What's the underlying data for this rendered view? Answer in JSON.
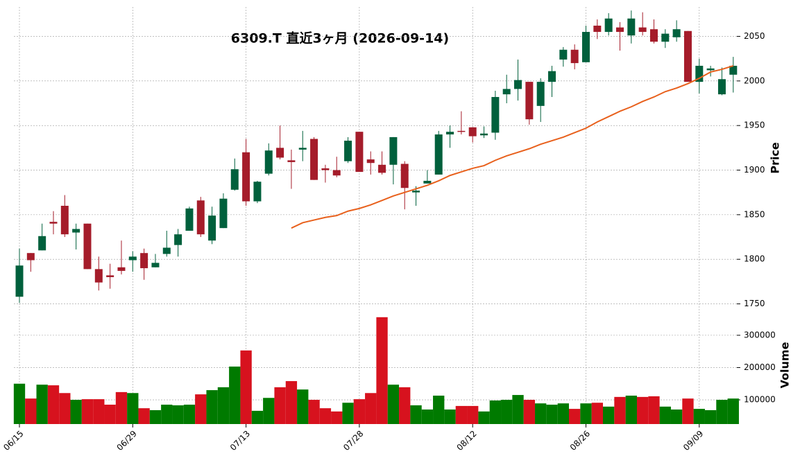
{
  "chart_data": {
    "type": "candlestick",
    "title": "6309.T  直近3ヶ月  (2026-09-14)",
    "categories": [
      "06/15",
      null,
      null,
      null,
      null,
      null,
      null,
      null,
      null,
      null,
      "06/29",
      null,
      null,
      null,
      null,
      null,
      null,
      null,
      null,
      null,
      "07/13",
      null,
      null,
      null,
      null,
      null,
      null,
      null,
      null,
      null,
      "07/28",
      null,
      null,
      null,
      null,
      null,
      null,
      null,
      null,
      null,
      "08/12",
      null,
      null,
      null,
      null,
      null,
      null,
      null,
      null,
      null,
      "08/26",
      null,
      null,
      null,
      null,
      null,
      null,
      null,
      null,
      null,
      "09/09",
      null,
      null,
      null
    ],
    "open": [
      1758,
      1807,
      1810,
      1842,
      1860,
      1830,
      1840,
      1789,
      1782,
      1791,
      1799,
      1807,
      1791,
      1806,
      1816,
      1832,
      1866,
      1821,
      1835,
      1878,
      1920,
      1865,
      1896,
      1925,
      1911,
      1923,
      1935,
      1902,
      1900,
      1910,
      1943,
      1912,
      1906,
      1906,
      1907,
      1875,
      1885,
      1895,
      1940,
      1944,
      1948,
      1939,
      1942,
      1985,
      1991,
      1999,
      1972,
      1999,
      2024,
      2035,
      2021,
      2062,
      2055,
      2060,
      2051,
      2060,
      2058,
      2044,
      2049,
      2056,
      1999,
      2012,
      1985,
      2007
    ],
    "high": [
      1812,
      1807,
      1840,
      1854,
      1872,
      1840,
      1840,
      1803,
      1795,
      1821,
      1809,
      1812,
      1806,
      1832,
      1834,
      1859,
      1870,
      1859,
      1874,
      1913,
      1935,
      1888,
      1930,
      1950,
      1923,
      1944,
      1937,
      1906,
      1915,
      1937,
      1943,
      1921,
      1921,
      1937,
      1910,
      1882,
      1900,
      1944,
      1950,
      1966,
      1948,
      1949,
      1989,
      2007,
      2024,
      1999,
      2003,
      2017,
      2038,
      2041,
      2062,
      2069,
      2076,
      2066,
      2079,
      2077,
      2069,
      2058,
      2068,
      2056,
      2025,
      2017,
      2015,
      2027
    ],
    "low": [
      1751,
      1786,
      1810,
      1828,
      1825,
      1811,
      1789,
      1765,
      1767,
      1783,
      1786,
      1777,
      1791,
      1803,
      1803,
      1832,
      1825,
      1817,
      1835,
      1877,
      1860,
      1863,
      1894,
      1912,
      1879,
      1910,
      1889,
      1886,
      1892,
      1908,
      1898,
      1895,
      1895,
      1884,
      1856,
      1860,
      1885,
      1895,
      1925,
      1940,
      1931,
      1936,
      1934,
      1975,
      1978,
      1951,
      1954,
      1982,
      2016,
      2013,
      2021,
      2047,
      2051,
      2034,
      2042,
      2051,
      2042,
      2037,
      2044,
      1999,
      1986,
      2005,
      1984,
      1987
    ],
    "close": [
      1793,
      1799,
      1826,
      1840,
      1828,
      1834,
      1789,
      1774,
      1780,
      1787,
      1803,
      1790,
      1796,
      1813,
      1828,
      1857,
      1828,
      1849,
      1868,
      1901,
      1865,
      1887,
      1922,
      1914,
      1909,
      1925,
      1889,
      1900,
      1894,
      1933,
      1898,
      1908,
      1897,
      1937,
      1880,
      1877,
      1888,
      1940,
      1943,
      1943,
      1938,
      1941,
      1982,
      1991,
      2001,
      1957,
      1999,
      2011,
      2035,
      2020,
      2055,
      2055,
      2070,
      2055,
      2070,
      2055,
      2044,
      2053,
      2058,
      1999,
      2017,
      2014,
      2002,
      2017
    ],
    "up_color": "#00603c",
    "down_color": "#a51c2a",
    "moving_average": {
      "color": "#e8601c",
      "values": [
        null,
        null,
        null,
        null,
        null,
        null,
        null,
        null,
        null,
        null,
        null,
        null,
        null,
        null,
        null,
        null,
        null,
        null,
        null,
        null,
        null,
        null,
        null,
        null,
        1835,
        1841,
        1844,
        1847,
        1849,
        1854,
        1857,
        1861,
        1866,
        1871,
        1875,
        1879,
        1883,
        1888,
        1894,
        1898,
        1902,
        1905,
        1911,
        1916,
        1920,
        1924,
        1929,
        1933,
        1937,
        1942,
        1947,
        1954,
        1960,
        1966,
        1971,
        1977,
        1982,
        1988,
        1992,
        1997,
        2003,
        2010,
        2013,
        2017
      ]
    },
    "ylabel": "Price",
    "ylim": [
      1745,
      2083
    ],
    "yticks": [
      1750,
      1800,
      1850,
      1900,
      1950,
      2000,
      2050
    ],
    "grid": true,
    "volume": {
      "ylabel": "Volume",
      "up_color": "#007a00",
      "down_color": "#d7121e",
      "ylim": [
        25000,
        362000
      ],
      "yticks": [
        100000,
        200000,
        300000
      ],
      "values": [
        150000,
        104000,
        147000,
        145000,
        121000,
        100000,
        102000,
        102000,
        85000,
        124000,
        121000,
        74000,
        68000,
        85000,
        83000,
        85000,
        117000,
        130000,
        139000,
        203000,
        253000,
        66000,
        106000,
        139000,
        158000,
        132000,
        100000,
        74000,
        64000,
        91000,
        102000,
        121000,
        356000,
        147000,
        139000,
        83000,
        70000,
        113000,
        70000,
        81000,
        81000,
        64000,
        98000,
        100000,
        115000,
        100000,
        89000,
        85000,
        89000,
        72000,
        89000,
        91000,
        79000,
        109000,
        113000,
        109000,
        111000,
        79000,
        70000,
        104000,
        72000,
        68000,
        100000,
        104000
      ]
    }
  }
}
